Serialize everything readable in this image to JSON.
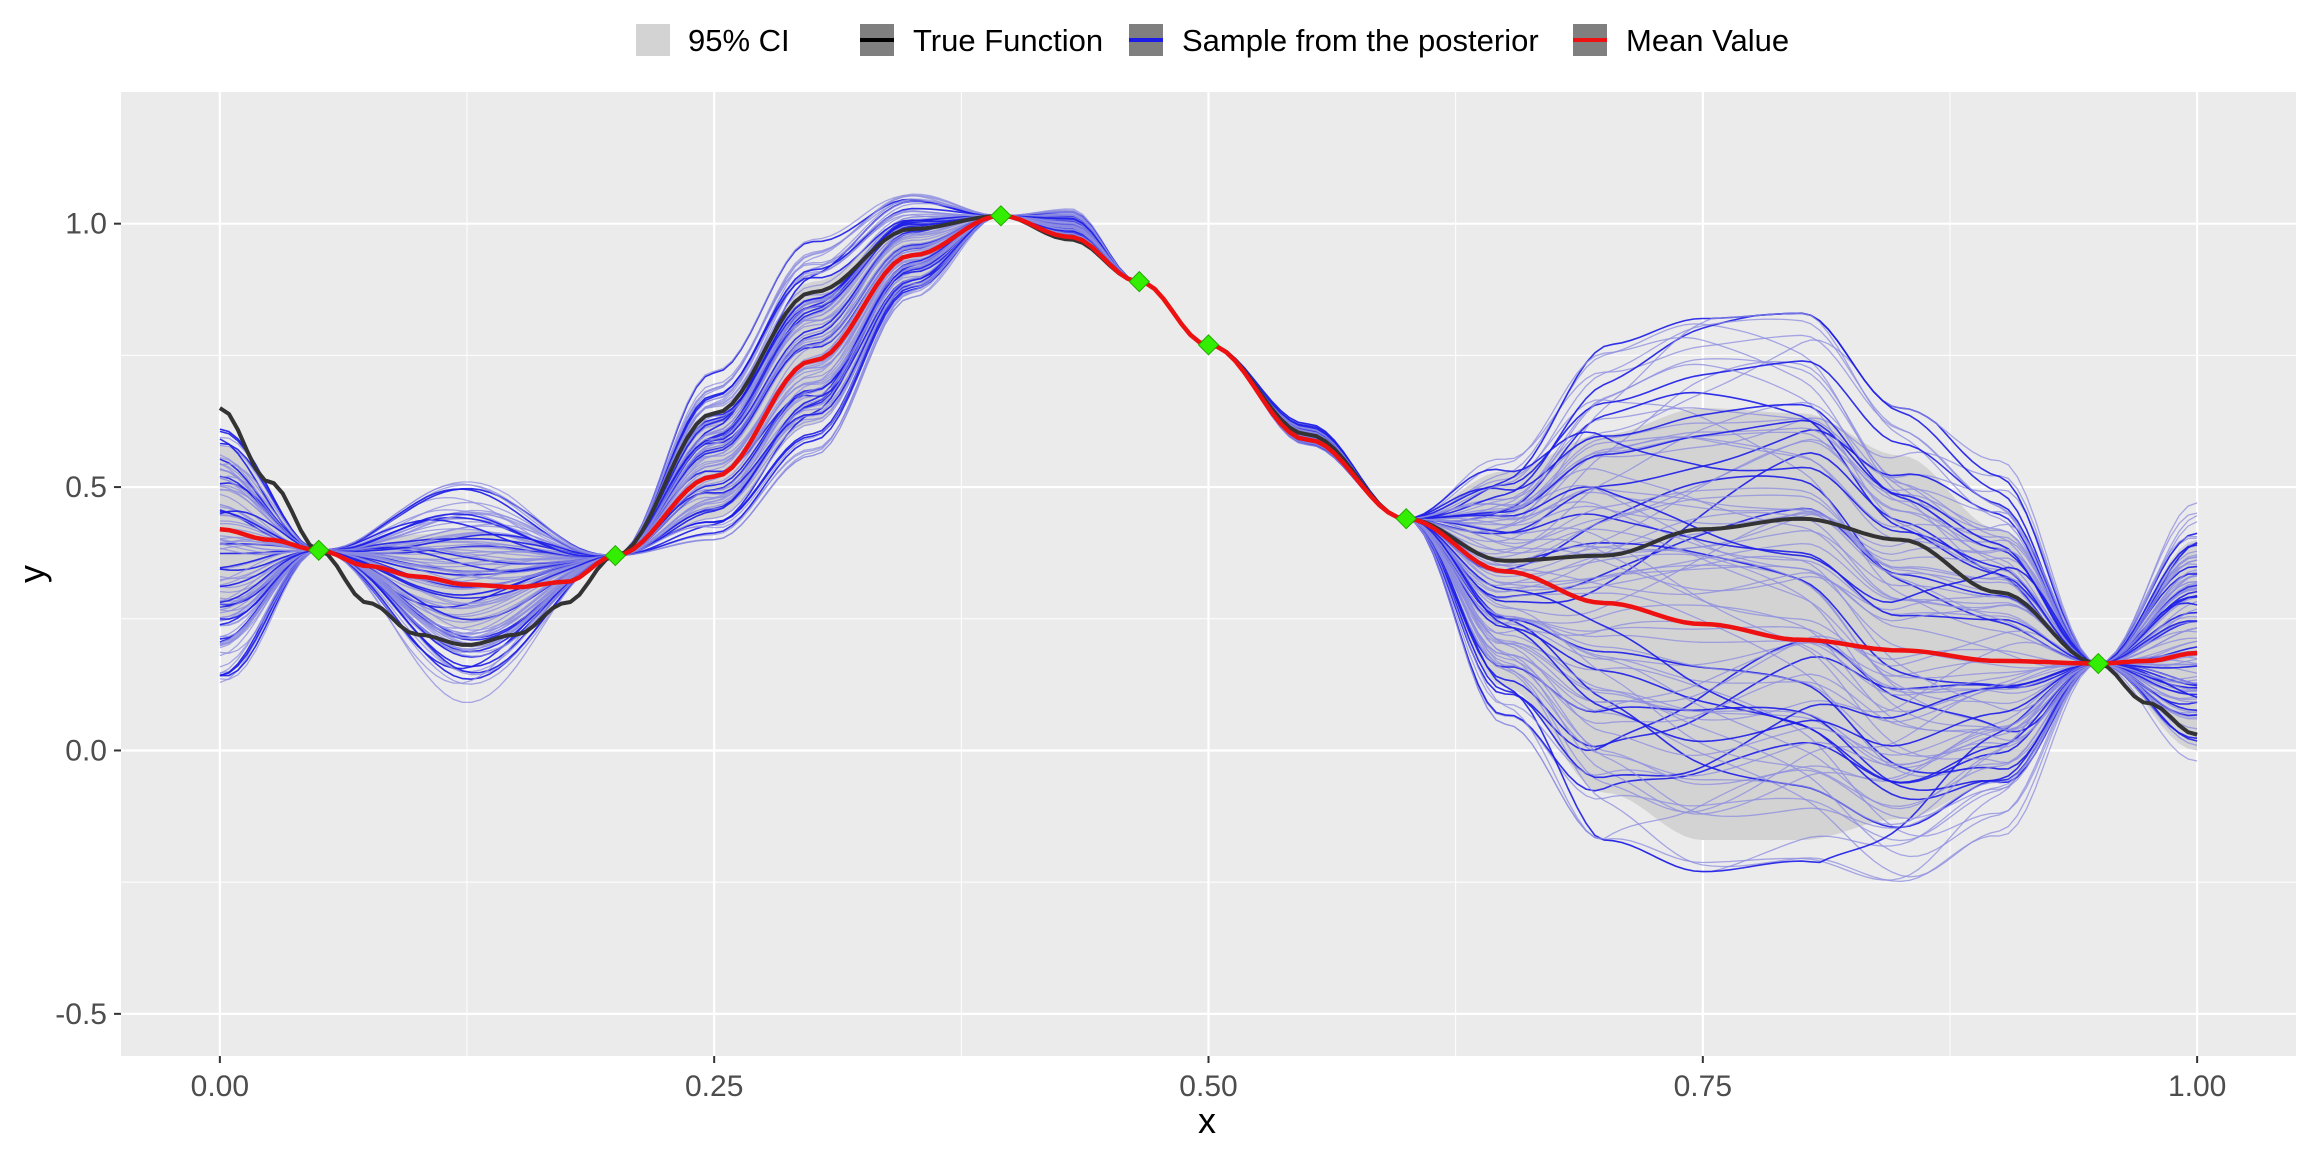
{
  "chart_data": {
    "type": "line",
    "title": "",
    "xlabel": "x",
    "ylabel": "y",
    "xlim": [
      -0.05,
      1.05
    ],
    "ylim": [
      -0.58,
      1.25
    ],
    "x_ticks": [
      0,
      0.25,
      0.5,
      0.75,
      1
    ],
    "x_tick_labels": [
      "0.00",
      "0.25",
      "0.50",
      "0.75",
      "1.00"
    ],
    "y_ticks": [
      -0.5,
      0,
      0.5,
      1
    ],
    "y_tick_labels": [
      "-0.5",
      "0.0",
      "0.5",
      "1.0"
    ],
    "grid": true,
    "legend_position": "top",
    "legend": [
      {
        "key": "ci",
        "label": "95% CI"
      },
      {
        "key": "true",
        "label": "True Function"
      },
      {
        "key": "sample",
        "label": "Sample from the posterior"
      },
      {
        "key": "mean",
        "label": "Mean Value"
      }
    ],
    "colors": {
      "panel": "#ebebeb",
      "grid_major": "#ffffff",
      "ci": "#d3d3d3",
      "true_function": "#333333",
      "sample_light": "#8c8ce0",
      "sample_dark": "#1c1ce8",
      "mean": "#ee1111",
      "observation": "#33ee00",
      "legend_key_bg": "#7f7f7f"
    },
    "observations": {
      "x": [
        0.05,
        0.2,
        0.395,
        0.465,
        0.5,
        0.6,
        0.95
      ],
      "y": [
        0.38,
        0.37,
        1.015,
        0.89,
        0.77,
        0.44,
        0.165
      ]
    },
    "series": [
      {
        "name": "True Function",
        "x": [
          0,
          0.025,
          0.05,
          0.075,
          0.1,
          0.125,
          0.15,
          0.175,
          0.2,
          0.25,
          0.3,
          0.35,
          0.395,
          0.43,
          0.465,
          0.5,
          0.55,
          0.6,
          0.65,
          0.7,
          0.75,
          0.8,
          0.85,
          0.9,
          0.95,
          0.975,
          1
        ],
        "y": [
          0.65,
          0.51,
          0.38,
          0.28,
          0.22,
          0.2,
          0.22,
          0.28,
          0.37,
          0.64,
          0.87,
          0.99,
          1.015,
          0.97,
          0.89,
          0.77,
          0.6,
          0.44,
          0.36,
          0.37,
          0.42,
          0.44,
          0.4,
          0.3,
          0.165,
          0.09,
          0.03
        ]
      },
      {
        "name": "Mean Value",
        "x": [
          0,
          0.025,
          0.05,
          0.075,
          0.1,
          0.125,
          0.15,
          0.175,
          0.2,
          0.25,
          0.3,
          0.35,
          0.395,
          0.43,
          0.465,
          0.5,
          0.55,
          0.6,
          0.65,
          0.7,
          0.75,
          0.8,
          0.85,
          0.9,
          0.95,
          0.975,
          1
        ],
        "y": [
          0.42,
          0.4,
          0.38,
          0.35,
          0.33,
          0.315,
          0.31,
          0.32,
          0.37,
          0.52,
          0.74,
          0.94,
          1.015,
          0.975,
          0.89,
          0.77,
          0.59,
          0.44,
          0.34,
          0.28,
          0.24,
          0.21,
          0.19,
          0.17,
          0.165,
          0.17,
          0.185
        ]
      }
    ],
    "ci_band": {
      "name": "95% CI",
      "x": [
        0,
        0.05,
        0.1,
        0.125,
        0.15,
        0.2,
        0.25,
        0.3,
        0.35,
        0.395,
        0.43,
        0.465,
        0.5,
        0.55,
        0.6,
        0.65,
        0.7,
        0.75,
        0.8,
        0.85,
        0.9,
        0.95,
        1
      ],
      "lower": [
        0.25,
        0.38,
        0.25,
        0.23,
        0.24,
        0.37,
        0.44,
        0.62,
        0.88,
        1.015,
        0.97,
        0.89,
        0.77,
        0.58,
        0.44,
        0.12,
        -0.08,
        -0.17,
        -0.17,
        -0.13,
        -0.06,
        0.165,
        0.0
      ],
      "upper": [
        0.58,
        0.38,
        0.41,
        0.42,
        0.4,
        0.37,
        0.63,
        0.89,
        1.01,
        1.015,
        0.98,
        0.89,
        0.77,
        0.6,
        0.44,
        0.53,
        0.6,
        0.65,
        0.64,
        0.56,
        0.42,
        0.165,
        0.4
      ]
    },
    "posterior_samples": {
      "name": "Sample from the posterior",
      "count": 100,
      "x": [
        0,
        0.05,
        0.125,
        0.2,
        0.25,
        0.3,
        0.35,
        0.395,
        0.43,
        0.465,
        0.5,
        0.55,
        0.6,
        0.65,
        0.7,
        0.75,
        0.8,
        0.85,
        0.9,
        0.95,
        1
      ],
      "y_min": [
        0.06,
        0.38,
        0.09,
        0.37,
        0.4,
        0.56,
        0.86,
        1.015,
        0.97,
        0.89,
        0.77,
        0.58,
        0.44,
        0.05,
        -0.17,
        -0.23,
        -0.21,
        -0.28,
        -0.17,
        0.165,
        -0.02
      ],
      "y_max": [
        0.61,
        0.38,
        0.51,
        0.37,
        0.72,
        0.97,
        1.06,
        1.015,
        1.03,
        0.89,
        0.77,
        0.62,
        0.44,
        0.56,
        0.77,
        0.82,
        0.83,
        0.65,
        0.55,
        0.165,
        0.47
      ]
    }
  }
}
